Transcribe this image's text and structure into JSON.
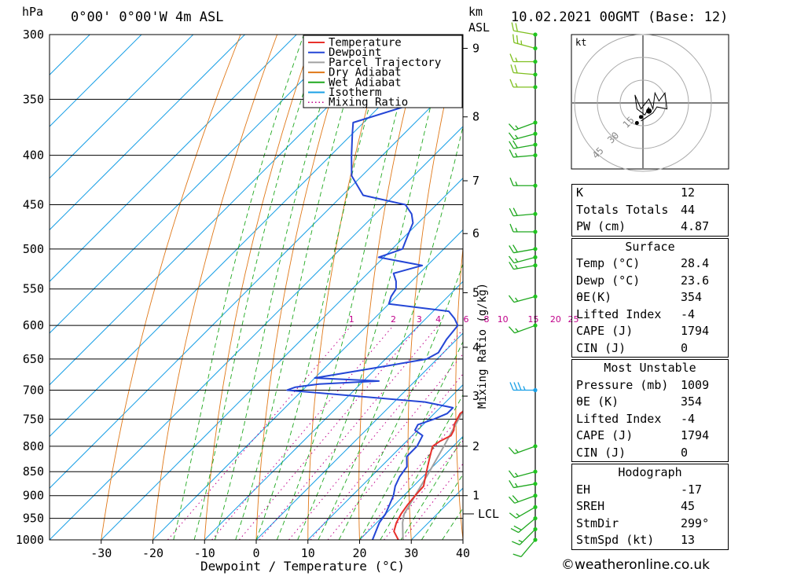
{
  "header": {
    "hpa_unit": "hPa",
    "location": "0°00' 0°00'W 4m ASL",
    "km_unit": "km",
    "asl_unit": "ASL",
    "datetime": "10.02.2021 00GMT (Base: 12)"
  },
  "legend": [
    {
      "label": "Temperature",
      "color": "#e8312b",
      "style": "solid"
    },
    {
      "label": "Dewpoint",
      "color": "#2446d6",
      "style": "solid"
    },
    {
      "label": "Parcel Trajectory",
      "color": "#a0a0a0",
      "style": "solid"
    },
    {
      "label": "Dry Adiabat",
      "color": "#e07818",
      "style": "solid"
    },
    {
      "label": "Wet Adiabat",
      "color": "#1fa81f",
      "style": "solid"
    },
    {
      "label": "Isotherm",
      "color": "#1aa0e6",
      "style": "solid"
    },
    {
      "label": "Mixing Ratio",
      "color": "#c0008a",
      "style": "dotted"
    }
  ],
  "chart_data": {
    "type": "line",
    "title": "",
    "xlabel": "Dewpoint / Temperature (°C)",
    "ylabel": "hPa",
    "y2label": "Mixing Ratio (g/kg)",
    "x_ticks": [
      -30,
      -20,
      -10,
      0,
      10,
      20,
      30,
      40
    ],
    "x_range": [
      -40,
      40
    ],
    "pressure_levels": [
      300,
      350,
      400,
      450,
      500,
      550,
      600,
      650,
      700,
      750,
      800,
      850,
      900,
      950,
      1000
    ],
    "pressure_range": [
      300,
      1000
    ],
    "height_km_ticks": [
      {
        "label": "9",
        "p": 310
      },
      {
        "label": "8",
        "p": 365
      },
      {
        "label": "7",
        "p": 425
      },
      {
        "label": "6",
        "p": 482
      },
      {
        "label": "5",
        "p": 555
      },
      {
        "label": "4",
        "p": 632
      },
      {
        "label": "3",
        "p": 710
      },
      {
        "label": "2",
        "p": 800
      },
      {
        "label": "1",
        "p": 900
      },
      {
        "label": "LCL",
        "p": 940
      }
    ],
    "mixing_ratio_labels": [
      "1",
      "2",
      "3",
      "4",
      "6",
      "8",
      "10",
      "15",
      "20",
      "25"
    ],
    "series": [
      {
        "name": "Temperature",
        "color": "#e8312b",
        "points": [
          [
            1000,
            27.5
          ],
          [
            980,
            25
          ],
          [
            960,
            23.8
          ],
          [
            940,
            23
          ],
          [
            920,
            22.5
          ],
          [
            900,
            22.2
          ],
          [
            880,
            22
          ],
          [
            860,
            20.5
          ],
          [
            840,
            19
          ],
          [
            820,
            17.5
          ],
          [
            800,
            16
          ],
          [
            790,
            16.5
          ],
          [
            780,
            17.5
          ],
          [
            770,
            17
          ],
          [
            760,
            16
          ],
          [
            740,
            15
          ],
          [
            730,
            15.5
          ],
          [
            720,
            15
          ],
          [
            710,
            14
          ],
          [
            700,
            14
          ],
          [
            690,
            14.5
          ],
          [
            680,
            13
          ],
          [
            670,
            12
          ],
          [
            660,
            10
          ],
          [
            650,
            9
          ],
          [
            640,
            8
          ],
          [
            630,
            7
          ],
          [
            620,
            6.5
          ],
          [
            610,
            6
          ],
          [
            600,
            5.5
          ],
          [
            590,
            5.5
          ],
          [
            580,
            4.5
          ],
          [
            570,
            4.2
          ],
          [
            560,
            4
          ],
          [
            550,
            3
          ],
          [
            540,
            1.5
          ],
          [
            520,
            -1
          ],
          [
            500,
            -2.5
          ],
          [
            480,
            -3
          ],
          [
            460,
            -4
          ],
          [
            450,
            -5
          ],
          [
            440,
            -4.5
          ],
          [
            430,
            -5
          ],
          [
            420,
            -6
          ],
          [
            400,
            -8
          ],
          [
            380,
            -11
          ],
          [
            370,
            -13
          ],
          [
            360,
            -15
          ],
          [
            350,
            -17
          ],
          [
            340,
            -19
          ],
          [
            330,
            -20
          ],
          [
            320,
            -21
          ],
          [
            310,
            -22
          ],
          [
            300,
            -23
          ]
        ]
      },
      {
        "name": "Dewpoint",
        "color": "#2446d6",
        "points": [
          [
            1000,
            22.5
          ],
          [
            980,
            21.5
          ],
          [
            960,
            20.5
          ],
          [
            940,
            20
          ],
          [
            920,
            19
          ],
          [
            900,
            18
          ],
          [
            880,
            16.5
          ],
          [
            860,
            15.5
          ],
          [
            840,
            15
          ],
          [
            820,
            13
          ],
          [
            800,
            13
          ],
          [
            780,
            12
          ],
          [
            770,
            9.5
          ],
          [
            760,
            9
          ],
          [
            750,
            11
          ],
          [
            740,
            12.5
          ],
          [
            730,
            12.5
          ],
          [
            720,
            6
          ],
          [
            700,
            -23
          ],
          [
            695,
            -22
          ],
          [
            690,
            -18
          ],
          [
            685,
            -7
          ],
          [
            680,
            -20
          ],
          [
            670,
            -14
          ],
          [
            660,
            -8
          ],
          [
            650,
            -2
          ],
          [
            640,
            -1
          ],
          [
            620,
            -2
          ],
          [
            600,
            -2.5
          ],
          [
            590,
            -4.5
          ],
          [
            580,
            -7
          ],
          [
            570,
            -20
          ],
          [
            560,
            -21
          ],
          [
            550,
            -21.5
          ],
          [
            540,
            -23
          ],
          [
            530,
            -25
          ],
          [
            520,
            -21
          ],
          [
            510,
            -31
          ],
          [
            500,
            -28
          ],
          [
            490,
            -29
          ],
          [
            480,
            -30
          ],
          [
            470,
            -31
          ],
          [
            460,
            -33
          ],
          [
            450,
            -36
          ],
          [
            440,
            -46
          ],
          [
            420,
            -52
          ],
          [
            400,
            -56
          ],
          [
            380,
            -60
          ],
          [
            370,
            -62
          ],
          [
            350,
            -52
          ],
          [
            330,
            -42
          ],
          [
            320,
            -40
          ],
          [
            310,
            -38
          ],
          [
            300,
            -38
          ]
        ]
      },
      {
        "name": "Parcel Trajectory",
        "color": "#a0a0a0",
        "points": [
          [
            1000,
            28.4
          ],
          [
            960,
            25
          ],
          [
            940,
            23.6
          ],
          [
            900,
            22.2
          ],
          [
            850,
            20.3
          ],
          [
            800,
            18.2
          ],
          [
            750,
            15.8
          ],
          [
            700,
            13.2
          ],
          [
            650,
            10.1
          ],
          [
            600,
            6.6
          ],
          [
            550,
            2.5
          ],
          [
            500,
            -2.4
          ],
          [
            450,
            -8.3
          ],
          [
            400,
            -15.6
          ],
          [
            380,
            -18.8
          ],
          [
            370,
            -20.6
          ],
          [
            360,
            -22.4
          ]
        ]
      }
    ]
  },
  "winds": [
    {
      "p": 300,
      "dir": 280,
      "spd": 20
    },
    {
      "p": 310,
      "dir": 285,
      "spd": 25
    },
    {
      "p": 320,
      "dir": 270,
      "spd": 15
    },
    {
      "p": 330,
      "dir": 275,
      "spd": 20
    },
    {
      "p": 340,
      "dir": 270,
      "spd": 15
    },
    {
      "p": 370,
      "dir": 250,
      "spd": 15
    },
    {
      "p": 380,
      "dir": 255,
      "spd": 15
    },
    {
      "p": 390,
      "dir": 260,
      "spd": 20
    },
    {
      "p": 400,
      "dir": 265,
      "spd": 15
    },
    {
      "p": 430,
      "dir": 270,
      "spd": 15
    },
    {
      "p": 460,
      "dir": 265,
      "spd": 20
    },
    {
      "p": 480,
      "dir": 270,
      "spd": 15
    },
    {
      "p": 500,
      "dir": 260,
      "spd": 20
    },
    {
      "p": 510,
      "dir": 255,
      "spd": 15
    },
    {
      "p": 520,
      "dir": 260,
      "spd": 15
    },
    {
      "p": 560,
      "dir": 255,
      "spd": 15
    },
    {
      "p": 600,
      "dir": 250,
      "spd": 15
    },
    {
      "p": 700,
      "dir": 270,
      "spd": 35
    },
    {
      "p": 800,
      "dir": 250,
      "spd": 15
    },
    {
      "p": 850,
      "dir": 255,
      "spd": 15
    },
    {
      "p": 875,
      "dir": 260,
      "spd": 15
    },
    {
      "p": 900,
      "dir": 250,
      "spd": 20
    },
    {
      "p": 925,
      "dir": 240,
      "spd": 15
    },
    {
      "p": 950,
      "dir": 230,
      "spd": 20
    },
    {
      "p": 975,
      "dir": 225,
      "spd": 15
    },
    {
      "p": 1000,
      "dir": 220,
      "spd": 10
    }
  ],
  "hodograph": {
    "unit_label": "kt",
    "ring_labels": [
      "15",
      "30",
      "45"
    ],
    "trace": [
      [
        3,
        -2
      ],
      [
        1,
        -6
      ],
      [
        -3,
        -3
      ],
      [
        -4,
        4
      ],
      [
        -1,
        -3
      ],
      [
        3,
        2
      ],
      [
        5,
        -3
      ],
      [
        6,
        5
      ],
      [
        8,
        1
      ],
      [
        11,
        5
      ],
      [
        12,
        -3
      ],
      [
        7,
        -2
      ],
      [
        5,
        -5
      ],
      [
        2,
        -7
      ],
      [
        -1,
        -9
      ]
    ],
    "storm_motion_points": [
      [
        3,
        -4
      ],
      [
        -1,
        -7
      ],
      [
        -3,
        -10
      ]
    ]
  },
  "indices": {
    "top": [
      {
        "label": "K",
        "value": "12"
      },
      {
        "label": "Totals Totals",
        "value": "44"
      },
      {
        "label": "PW (cm)",
        "value": "4.87"
      }
    ],
    "surface": {
      "title": "Surface",
      "rows": [
        {
          "label": "Temp (°C)",
          "value": "28.4"
        },
        {
          "label": "Dewp (°C)",
          "value": "23.6"
        },
        {
          "label": "θE(K)",
          "value": "354"
        },
        {
          "label": "Lifted Index",
          "value": "-4"
        },
        {
          "label": "CAPE (J)",
          "value": "1794"
        },
        {
          "label": "CIN (J)",
          "value": "0"
        }
      ]
    },
    "most_unstable": {
      "title": "Most Unstable",
      "rows": [
        {
          "label": "Pressure (mb)",
          "value": "1009"
        },
        {
          "label": "θE (K)",
          "value": "354"
        },
        {
          "label": "Lifted Index",
          "value": "-4"
        },
        {
          "label": "CAPE (J)",
          "value": "1794"
        },
        {
          "label": "CIN (J)",
          "value": "0"
        }
      ]
    },
    "hodograph_block": {
      "title": "Hodograph",
      "rows": [
        {
          "label": "EH",
          "value": "-17"
        },
        {
          "label": "SREH",
          "value": "45"
        },
        {
          "label": "StmDir",
          "value": "299°"
        },
        {
          "label": "StmSpd (kt)",
          "value": "13"
        }
      ]
    }
  },
  "credit": "©weatheronline.co.uk"
}
